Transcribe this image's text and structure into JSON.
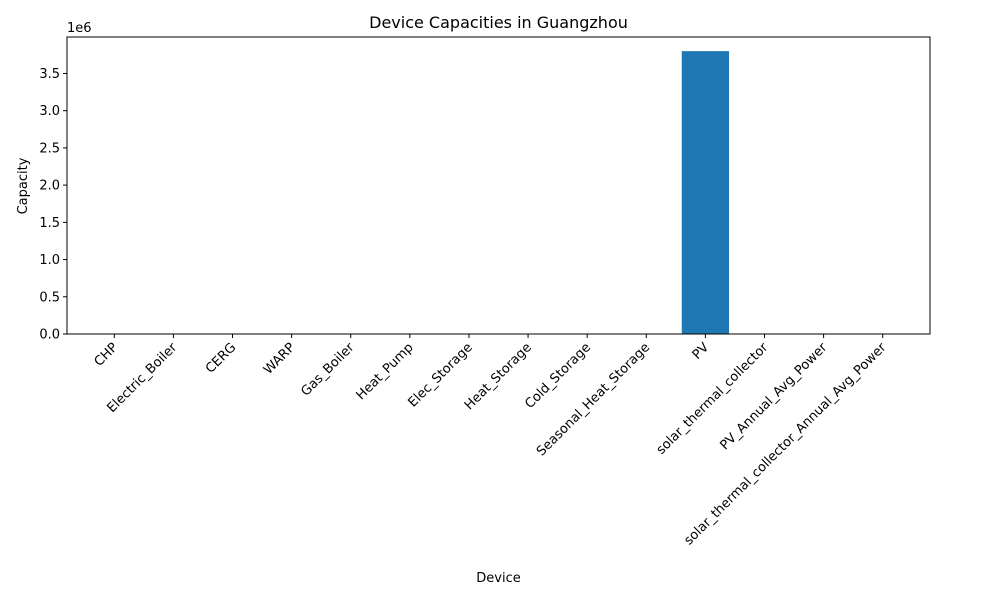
{
  "chart_data": {
    "type": "bar",
    "title": "Device Capacities in Guangzhou",
    "xlabel": "Device",
    "ylabel": "Capacity",
    "y_offset_label": "1e6",
    "categories": [
      "CHP",
      "Electric_Boiler",
      "CERG",
      "WARP",
      "Gas_Boiler",
      "Heat_Pump",
      "Elec_Storage",
      "Heat_Storage",
      "Cold_Storage",
      "Seasonal_Heat_Storage",
      "PV",
      "solar_thermal_collector",
      "PV_Annual_Avg_Power",
      "solar_thermal_collector_Annual_Avg_Power"
    ],
    "values": [
      0,
      0,
      0,
      0,
      0,
      0,
      0,
      0,
      0,
      0,
      3800000,
      0,
      0,
      0
    ],
    "ylim": [
      0,
      3990000
    ],
    "yticks": [
      0,
      500000,
      1000000,
      1500000,
      2000000,
      2500000,
      3000000,
      3500000
    ],
    "ytick_labels": [
      "0.0",
      "0.5",
      "1.0",
      "1.5",
      "2.0",
      "2.5",
      "3.0",
      "3.5"
    ],
    "bar_color": "#1f77b4",
    "grid": false,
    "legend": "none"
  }
}
